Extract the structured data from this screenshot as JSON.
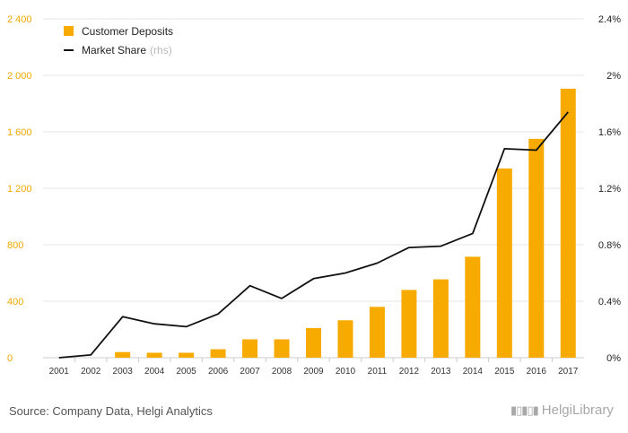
{
  "chart_data": {
    "type": "bar+line",
    "title": "",
    "categories": [
      "2001",
      "2002",
      "2003",
      "2004",
      "2005",
      "2006",
      "2007",
      "2008",
      "2009",
      "2010",
      "2011",
      "2012",
      "2013",
      "2014",
      "2015",
      "2016",
      "2017"
    ],
    "series": [
      {
        "name": "Customer Deposits",
        "type": "bar",
        "axis": "left",
        "color": "#f7ab00",
        "values": [
          0,
          0,
          40,
          35,
          35,
          60,
          130,
          130,
          210,
          265,
          360,
          480,
          555,
          715,
          1340,
          1550,
          1905
        ]
      },
      {
        "name": "Market Share",
        "axis_note": "(rhs)",
        "type": "line",
        "axis": "right",
        "color": "#111111",
        "values": [
          0.0,
          0.02,
          0.29,
          0.24,
          0.22,
          0.31,
          0.51,
          0.42,
          0.56,
          0.6,
          0.67,
          0.78,
          0.79,
          0.88,
          1.48,
          1.47,
          1.74
        ]
      }
    ],
    "y_left": {
      "min": 0,
      "max": 2400,
      "ticks": [
        0,
        400,
        800,
        1200,
        1600,
        2000,
        2400
      ],
      "tick_labels": [
        "0",
        "400",
        "800",
        "1 200",
        "1 600",
        "2 000",
        "2 400"
      ]
    },
    "y_right": {
      "min": 0,
      "max": 2.4,
      "ticks": [
        0,
        0.4,
        0.8,
        1.2,
        1.6,
        2.0,
        2.4
      ],
      "tick_labels": [
        "0%",
        "0.4%",
        "0.8%",
        "1.2%",
        "1.6%",
        "2%",
        "2.4%"
      ]
    },
    "grid": true,
    "legend_position": "top-left"
  },
  "source_text": "Source: Company Data, Helgi Analytics",
  "logo": {
    "text": "HelgiLibrary",
    "icon": "bookshelf-icon"
  }
}
